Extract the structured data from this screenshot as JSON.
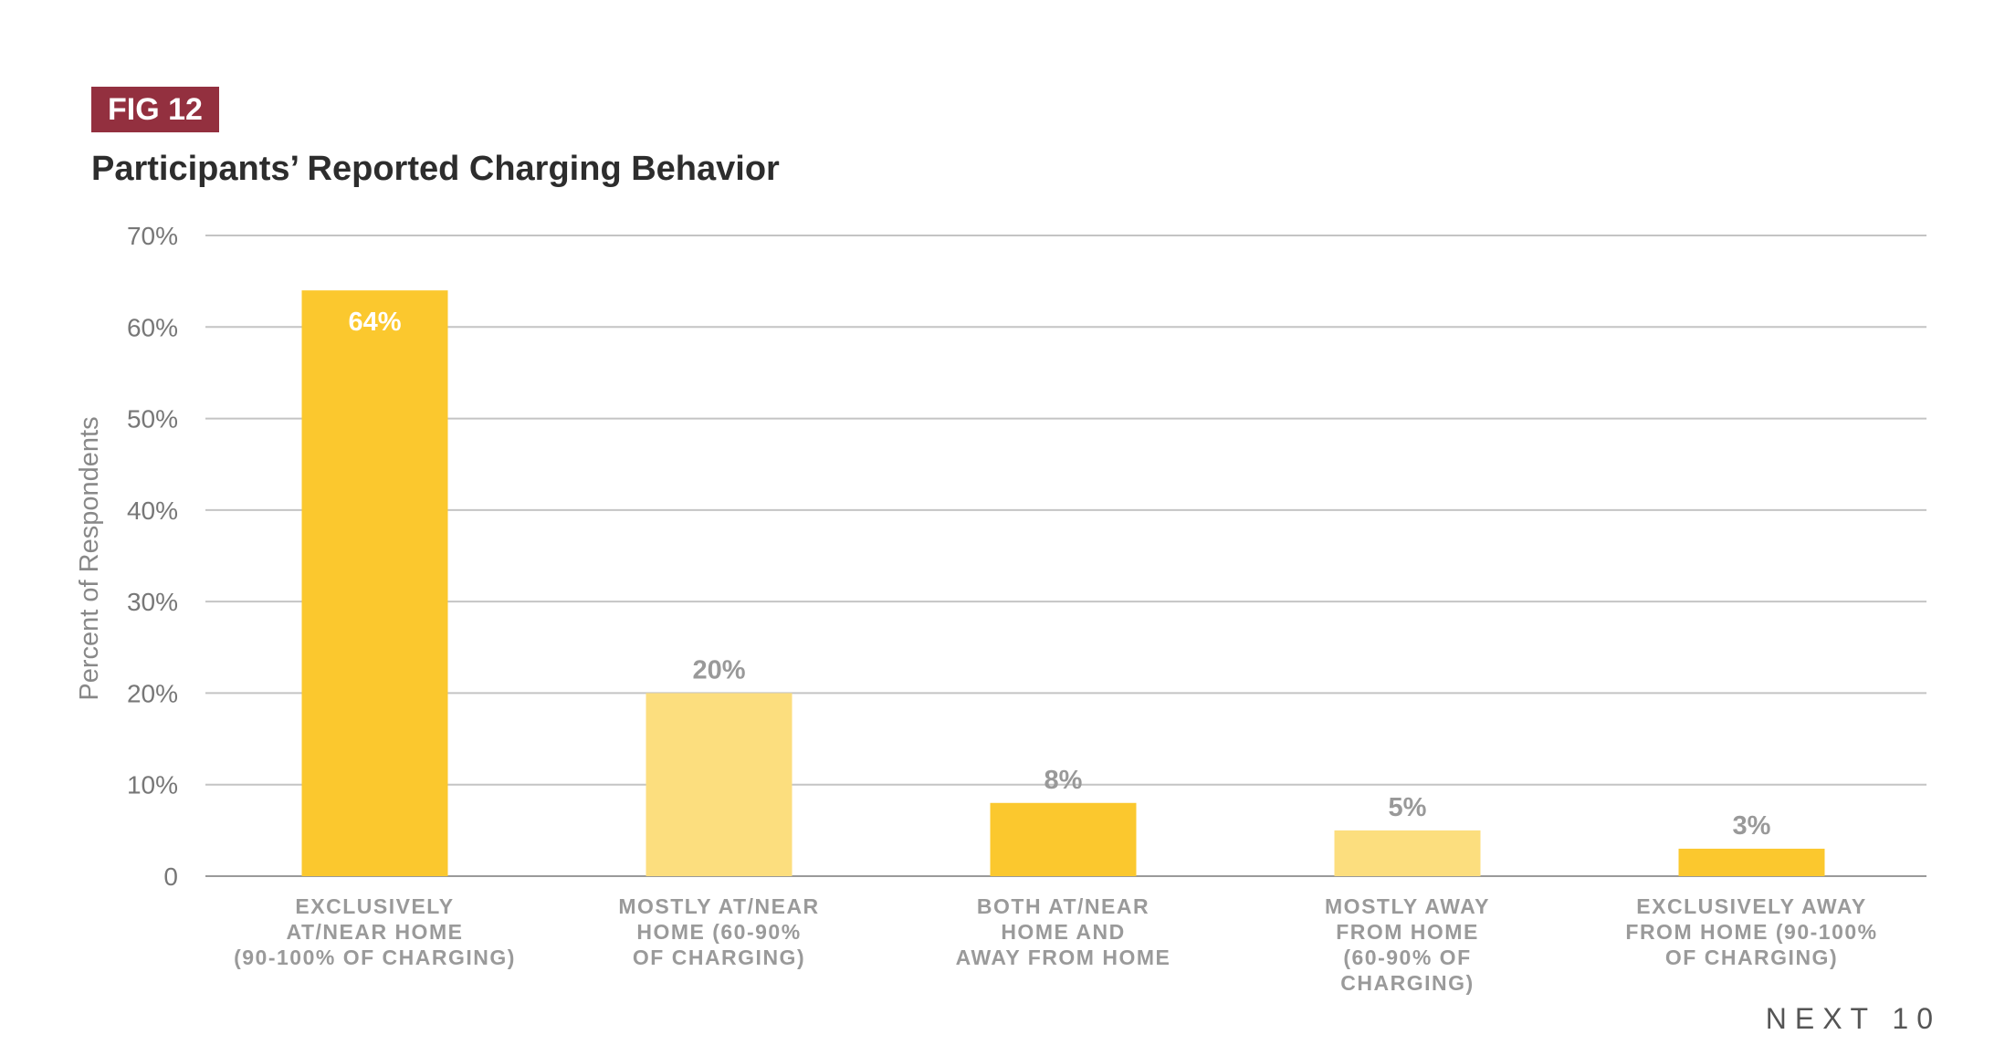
{
  "figure": {
    "badge": "FIG 12",
    "footer": "NEXT 10"
  },
  "chart_data": {
    "type": "bar",
    "title": "Participants’ Reported Charging Behavior",
    "xlabel": "",
    "ylabel": "Percent of Respondents",
    "ylim": [
      0,
      70
    ],
    "yticks": [
      {
        "value": 0,
        "label": "0"
      },
      {
        "value": 10,
        "label": "10%"
      },
      {
        "value": 20,
        "label": "20%"
      },
      {
        "value": 30,
        "label": "30%"
      },
      {
        "value": 40,
        "label": "40%"
      },
      {
        "value": 50,
        "label": "50%"
      },
      {
        "value": 60,
        "label": "60%"
      },
      {
        "value": 70,
        "label": "70%"
      }
    ],
    "grid": true,
    "categories": [
      [
        "EXCLUSIVELY",
        "AT/NEAR HOME",
        "(90-100% OF CHARGING)"
      ],
      [
        "MOSTLY AT/NEAR",
        "HOME (60-90%",
        "OF CHARGING)"
      ],
      [
        "BOTH AT/NEAR",
        "HOME AND",
        "AWAY FROM HOME"
      ],
      [
        "MOSTLY AWAY",
        "FROM HOME",
        "(60-90% OF",
        "CHARGING)"
      ],
      [
        "EXCLUSIVELY AWAY",
        "FROM HOME (90-100%",
        "OF CHARGING)"
      ]
    ],
    "values": [
      64,
      20,
      8,
      5,
      3
    ],
    "data_labels": [
      "64%",
      "20%",
      "8%",
      "5%",
      "3%"
    ],
    "bar_colors": [
      "#fbc82e",
      "#fcde7e",
      "#fbc82e",
      "#fcde7e",
      "#fbc82e"
    ],
    "label_inside_first_bar_color": "#ffffff",
    "label_color": "#999999",
    "grid_color": "#c4c4c4"
  }
}
